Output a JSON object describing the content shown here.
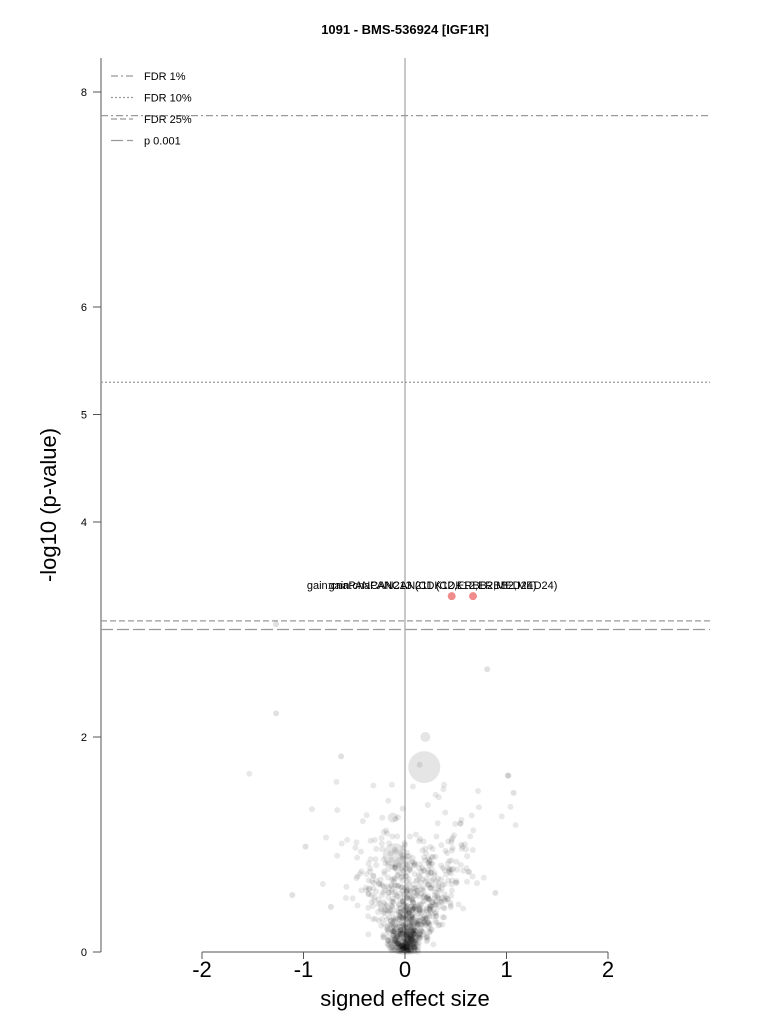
{
  "chart_data": {
    "type": "scatter",
    "title": "1091 - BMS-536924 [IGF1R]",
    "xlabel": "signed effect size",
    "ylabel": "-log10 (p-value)",
    "xlim": [
      -2,
      2
    ],
    "ylim": [
      0,
      8.4
    ],
    "xticks": [
      "-2",
      "-1",
      "0",
      "1",
      "2"
    ],
    "yticks": [
      "0",
      "2",
      "4",
      "5",
      "6",
      "8"
    ],
    "thresholds": [
      {
        "name": "FDR 1%",
        "style": "dashdot",
        "y": 7.78
      },
      {
        "name": "FDR 10%",
        "style": "dotted",
        "y": 5.3
      },
      {
        "name": "FDR 25%",
        "style": "dashed",
        "y": 3.08
      },
      {
        "name": "p 0.001",
        "style": "longdash",
        "y": 3.0
      }
    ],
    "legend_position": "top-left",
    "highlight_color": "#f08080",
    "point_color": "#000000",
    "annotations": [
      {
        "text": "gain:cnaPANCAN213 (CDK12,ERBB2,MED24)",
        "x": 0.46,
        "y": 3.31
      },
      {
        "text": "gain:cnaPANCAN211 (CDK12,ERBB2,MED24)",
        "x": 0.67,
        "y": 3.31
      }
    ],
    "significant_points": [
      {
        "x": 0.46,
        "y": 3.31,
        "size": 4
      },
      {
        "x": 0.67,
        "y": 3.31,
        "size": 4
      }
    ],
    "large_points": [
      {
        "x": 0.19,
        "y": 1.72,
        "size": 16
      },
      {
        "x": -0.1,
        "y": 0.9,
        "size": 12
      },
      {
        "x": -0.02,
        "y": 0.8,
        "size": 10
      },
      {
        "x": 0.2,
        "y": 2.0,
        "size": 5
      },
      {
        "x": -0.12,
        "y": 1.25,
        "size": 5
      }
    ],
    "outlier_points": [
      {
        "x": -1.27,
        "y": 3.05
      },
      {
        "x": -1.27,
        "y": 2.22
      },
      {
        "x": 0.81,
        "y": 2.63
      },
      {
        "x": -0.63,
        "y": 1.82
      },
      {
        "x": 1.02,
        "y": 1.64
      },
      {
        "x": 1.07,
        "y": 1.48
      },
      {
        "x": -0.98,
        "y": 0.98
      },
      {
        "x": -1.11,
        "y": 0.53
      },
      {
        "x": 0.89,
        "y": 0.55
      },
      {
        "x": -0.73,
        "y": 0.42
      }
    ]
  }
}
